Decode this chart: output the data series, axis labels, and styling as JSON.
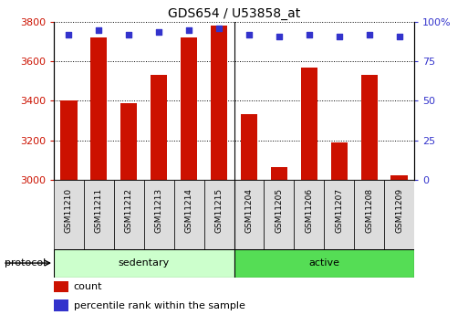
{
  "title": "GDS654 / U53858_at",
  "samples": [
    "GSM11210",
    "GSM11211",
    "GSM11212",
    "GSM11213",
    "GSM11214",
    "GSM11215",
    "GSM11204",
    "GSM11205",
    "GSM11206",
    "GSM11207",
    "GSM11208",
    "GSM11209"
  ],
  "counts": [
    3400,
    3720,
    3390,
    3530,
    3720,
    3780,
    3330,
    3065,
    3570,
    3190,
    3530,
    3020
  ],
  "percentile_ranks": [
    92,
    95,
    92,
    94,
    95,
    96,
    92,
    91,
    92,
    91,
    92,
    91
  ],
  "groups": [
    {
      "label": "sedentary",
      "start": 0,
      "end": 6
    },
    {
      "label": "active",
      "start": 6,
      "end": 12
    }
  ],
  "protocol_label": "protocol",
  "ymin": 3000,
  "ymax": 3800,
  "yticks": [
    3000,
    3200,
    3400,
    3600,
    3800
  ],
  "y2ticks": [
    0,
    25,
    50,
    75,
    100
  ],
  "y2labels": [
    "0",
    "25",
    "50",
    "75",
    "100%"
  ],
  "bar_color": "#cc1100",
  "dot_color": "#3333cc",
  "group_bg_sedentary": "#ccffcc",
  "group_bg_active": "#55dd55",
  "sample_bg": "#dddddd",
  "tick_label_color_left": "#cc1100",
  "tick_label_color_right": "#3333cc",
  "legend_count_label": "count",
  "legend_percentile_label": "percentile rank within the sample",
  "bar_width": 0.55
}
